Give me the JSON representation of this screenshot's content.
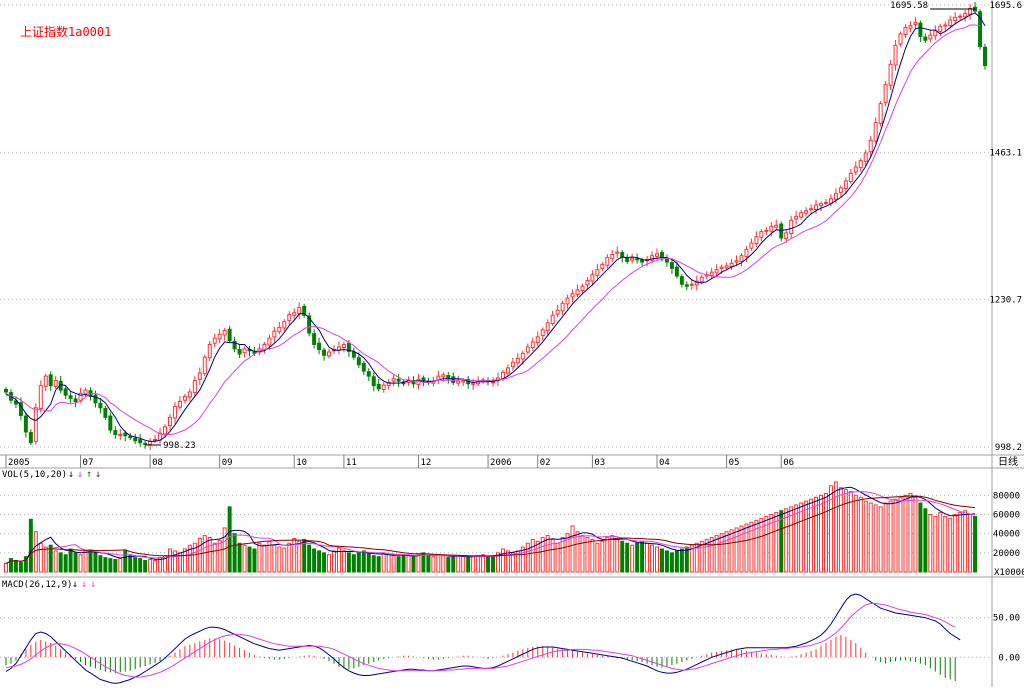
{
  "title": "上证指数1a0001",
  "colors": {
    "up": "#ff3232",
    "down": "#008000",
    "ma1": "#00008b",
    "ma2": "#e040e0",
    "ma3": "#8b0000",
    "grid": "#b0b0b0",
    "text": "#000000",
    "title": "#ff0000"
  },
  "chart_data": [
    {
      "type": "candlestick",
      "name": "price",
      "y_ticks": [
        "1695.6",
        "1463.1",
        "1230.7",
        "998.2"
      ],
      "ylim": [
        998.2,
        1695.6
      ],
      "annotations": {
        "high": "1695.58",
        "low": "998.23"
      },
      "x_labels": [
        "2005",
        "07",
        "08",
        "09",
        "10",
        "11",
        "12",
        "2006",
        "02",
        "03",
        "04",
        "05",
        "06"
      ],
      "corner_label": "日线",
      "series_shown": [
        "MA short",
        "MA long"
      ],
      "close": [
        1085,
        1072,
        1066,
        1048,
        1022,
        1005,
        1060,
        1095,
        1110,
        1095,
        1103,
        1088,
        1080,
        1075,
        1070,
        1083,
        1088,
        1078,
        1068,
        1060,
        1045,
        1025,
        1018,
        1018,
        1016,
        1013,
        1008,
        1005,
        1003,
        1007,
        1010,
        1020,
        1030,
        1045,
        1062,
        1070,
        1078,
        1085,
        1103,
        1115,
        1140,
        1160,
        1170,
        1176,
        1182,
        1166,
        1153,
        1145,
        1153,
        1150,
        1146,
        1153,
        1160,
        1170,
        1181,
        1187,
        1196,
        1207,
        1210,
        1218,
        1206,
        1178,
        1160,
        1152,
        1143,
        1148,
        1152,
        1156,
        1160,
        1149,
        1140,
        1128,
        1118,
        1110,
        1095,
        1090,
        1096,
        1100,
        1106,
        1102,
        1098,
        1104,
        1098,
        1105,
        1103,
        1100,
        1102,
        1110,
        1112,
        1107,
        1100,
        1102,
        1103,
        1098,
        1099,
        1101,
        1104,
        1102,
        1101,
        1107,
        1116,
        1123,
        1132,
        1138,
        1146,
        1156,
        1164,
        1172,
        1183,
        1194,
        1206,
        1214,
        1225,
        1233,
        1240,
        1246,
        1252,
        1261,
        1270,
        1278,
        1286,
        1297,
        1302,
        1306,
        1298,
        1291,
        1296,
        1294,
        1290,
        1294,
        1300,
        1303,
        1297,
        1290,
        1280,
        1268,
        1255,
        1252,
        1255,
        1260,
        1266,
        1270,
        1274,
        1278,
        1282,
        1284,
        1288,
        1292,
        1300,
        1310,
        1320,
        1330,
        1338,
        1340,
        1346,
        1348,
        1328,
        1336,
        1356,
        1362,
        1368,
        1371,
        1374,
        1380,
        1382,
        1384,
        1390,
        1398,
        1407,
        1418,
        1430,
        1440,
        1450,
        1462,
        1482,
        1510,
        1540,
        1570,
        1602,
        1632,
        1650,
        1660,
        1663,
        1668,
        1646,
        1640,
        1648,
        1655,
        1662,
        1664,
        1672,
        1676,
        1678,
        1682,
        1690,
        1686,
        1630,
        1600
      ],
      "ma_short": [
        1082,
        1078,
        1073,
        1063,
        1051,
        1043,
        1040,
        1046,
        1056,
        1066,
        1088,
        1097,
        1095,
        1086,
        1083,
        1080,
        1081,
        1079,
        1077,
        1074,
        1068,
        1056,
        1045,
        1031,
        1022,
        1016,
        1014,
        1012,
        1009,
        1007,
        1007,
        1009,
        1014,
        1023,
        1033,
        1045,
        1057,
        1068,
        1078,
        1088,
        1104,
        1121,
        1140,
        1154,
        1164,
        1163,
        1163,
        1160,
        1160,
        1152,
        1149,
        1149,
        1150,
        1155,
        1162,
        1169,
        1179,
        1190,
        1198,
        1208,
        1209,
        1202,
        1192,
        1183,
        1168,
        1156,
        1151,
        1151,
        1152,
        1151,
        1149,
        1145,
        1139,
        1130,
        1118,
        1108,
        1102,
        1099,
        1099,
        1099,
        1100,
        1103,
        1102,
        1103,
        1102,
        1102,
        1102,
        1104,
        1106,
        1106,
        1106,
        1106,
        1105,
        1102,
        1100,
        1101,
        1101,
        1101,
        1102,
        1103,
        1106,
        1110,
        1116,
        1123,
        1131,
        1139,
        1147,
        1155,
        1164,
        1174,
        1184,
        1194,
        1204,
        1214,
        1224,
        1232,
        1240,
        1247,
        1254,
        1262,
        1270,
        1278,
        1286,
        1294,
        1298,
        1297,
        1298,
        1297,
        1294,
        1293,
        1295,
        1296,
        1297,
        1297,
        1294,
        1288,
        1279,
        1269,
        1262,
        1258,
        1257,
        1259,
        1264,
        1268,
        1274,
        1278,
        1282,
        1285,
        1289,
        1295,
        1302,
        1310,
        1320,
        1328,
        1335,
        1341,
        1340,
        1341,
        1343,
        1346,
        1350,
        1359,
        1366,
        1371,
        1375,
        1378,
        1382,
        1387,
        1392,
        1399,
        1409,
        1419,
        1429,
        1441,
        1456,
        1474,
        1497,
        1522,
        1549,
        1577,
        1603,
        1627,
        1646,
        1658,
        1660,
        1658,
        1656,
        1656,
        1650,
        1654,
        1660,
        1666,
        1671,
        1675,
        1680,
        1683,
        1676,
        1663
      ],
      "ma_long": [
        1079,
        1079,
        1077,
        1072,
        1066,
        1060,
        1057,
        1057,
        1056,
        1055,
        1065,
        1069,
        1068,
        1066,
        1068,
        1070,
        1077,
        1082,
        1083,
        1080,
        1076,
        1068,
        1063,
        1056,
        1051,
        1046,
        1041,
        1036,
        1032,
        1028,
        1023,
        1019,
        1017,
        1018,
        1019,
        1022,
        1025,
        1030,
        1036,
        1044,
        1055,
        1067,
        1077,
        1089,
        1101,
        1109,
        1118,
        1126,
        1134,
        1139,
        1145,
        1150,
        1152,
        1153,
        1155,
        1158,
        1163,
        1169,
        1175,
        1179,
        1185,
        1188,
        1188,
        1187,
        1184,
        1180,
        1176,
        1173,
        1168,
        1163,
        1158,
        1151,
        1145,
        1140,
        1136,
        1131,
        1124,
        1118,
        1113,
        1108,
        1104,
        1104,
        1102,
        1102,
        1100,
        1100,
        1101,
        1104,
        1103,
        1104,
        1103,
        1104,
        1105,
        1104,
        1103,
        1103,
        1103,
        1103,
        1104,
        1104,
        1105,
        1107,
        1110,
        1113,
        1115,
        1119,
        1125,
        1132,
        1138,
        1145,
        1152,
        1159,
        1166,
        1174,
        1183,
        1191,
        1199,
        1208,
        1216,
        1224,
        1231,
        1240,
        1248,
        1254,
        1261,
        1267,
        1273,
        1278,
        1283,
        1287,
        1290,
        1293,
        1294,
        1296,
        1295,
        1292,
        1288,
        1284,
        1280,
        1275,
        1272,
        1270,
        1268,
        1267,
        1266,
        1266,
        1266,
        1269,
        1273,
        1278,
        1284,
        1290,
        1297,
        1303,
        1310,
        1315,
        1318,
        1322,
        1327,
        1331,
        1336,
        1340,
        1343,
        1346,
        1350,
        1355,
        1362,
        1370,
        1377,
        1385,
        1393,
        1403,
        1414,
        1428,
        1444,
        1461,
        1479,
        1499,
        1518,
        1538,
        1556,
        1573,
        1590,
        1602,
        1612,
        1620,
        1628,
        1636,
        1642,
        1648,
        1652,
        1656,
        1658,
        1660,
        1664,
        1664,
        1663
      ]
    },
    {
      "type": "bar",
      "name": "volume",
      "label": "VOL(5,10,20)",
      "arrows": [
        "↓",
        "↓",
        "↑",
        "↓"
      ],
      "y_ticks": [
        "80000",
        "60000",
        "40000",
        "20000"
      ],
      "unit": "X10000",
      "ylim": [
        0,
        95000
      ],
      "values": [
        9000,
        14000,
        12000,
        10000,
        16000,
        55000,
        42000,
        30000,
        26000,
        28000,
        22000,
        20000,
        18000,
        24000,
        20000,
        18000,
        22000,
        23000,
        20000,
        17000,
        15000,
        14000,
        13000,
        14000,
        22000,
        18000,
        15000,
        14000,
        12000,
        13000,
        12000,
        15000,
        17000,
        24000,
        22000,
        20000,
        24000,
        28000,
        30000,
        35000,
        38000,
        36000,
        30000,
        33000,
        46000,
        68000,
        40000,
        30000,
        28000,
        26000,
        24000,
        30000,
        28000,
        32000,
        28000,
        26000,
        25000,
        30000,
        35000,
        32000,
        34000,
        28000,
        24000,
        22000,
        20000,
        18000,
        22000,
        25000,
        22000,
        20000,
        18000,
        20000,
        22000,
        19000,
        17000,
        16000,
        20000,
        18000,
        17000,
        16000,
        18000,
        17000,
        16000,
        18000,
        20000,
        17000,
        16000,
        18000,
        17000,
        15000,
        16000,
        17000,
        16000,
        15000,
        16000,
        17000,
        18000,
        16000,
        17000,
        20000,
        24000,
        22000,
        20000,
        22000,
        26000,
        30000,
        34000,
        32000,
        36000,
        38000,
        34000,
        30000,
        36000,
        40000,
        48000,
        42000,
        38000,
        36000,
        34000,
        30000,
        32000,
        36000,
        38000,
        34000,
        32000,
        30000,
        28000,
        30000,
        32000,
        30000,
        28000,
        26000,
        24000,
        22000,
        20000,
        22000,
        24000,
        26000,
        28000,
        30000,
        32000,
        34000,
        36000,
        38000,
        40000,
        42000,
        44000,
        46000,
        48000,
        50000,
        52000,
        54000,
        56000,
        58000,
        60000,
        62000,
        64000,
        66000,
        68000,
        70000,
        72000,
        74000,
        76000,
        78000,
        80000,
        82000,
        90000,
        94000,
        88000,
        86000,
        84000,
        80000,
        78000,
        74000,
        72000,
        70000,
        68000,
        72000,
        74000,
        76000,
        78000,
        80000,
        82000,
        78000,
        72000,
        66000,
        60000,
        58000,
        62000,
        58000,
        56000,
        60000,
        62000,
        64000,
        60000,
        58000
      ]
    },
    {
      "type": "bar",
      "name": "macd",
      "label": "MACD(26,12,9)",
      "arrows": [
        "↓",
        "↓",
        "↓"
      ],
      "y_ticks": [
        "50.00",
        "0.00"
      ],
      "ylim": [
        -35,
        85
      ],
      "hist": [
        -10,
        -8,
        -4,
        4,
        10,
        16,
        20,
        22,
        20,
        18,
        14,
        10,
        6,
        2,
        -2,
        -6,
        -10,
        -12,
        -14,
        -16,
        -18,
        -19,
        -20,
        -19,
        -18,
        -17,
        -15,
        -13,
        -11,
        -9,
        -7,
        -5,
        -2,
        2,
        6,
        10,
        14,
        16,
        18,
        20,
        22,
        24,
        24,
        23,
        21,
        18,
        15,
        12,
        9,
        6,
        3,
        1,
        -1,
        -2,
        -3,
        -3,
        -2,
        -1,
        0,
        1,
        2,
        3,
        2,
        0,
        -2,
        -5,
        -8,
        -12,
        -14,
        -15,
        -14,
        -12,
        -10,
        -8,
        -6,
        -4,
        -2,
        -1,
        0,
        1,
        2,
        2,
        1,
        0,
        -1,
        -2,
        -3,
        -3,
        -2,
        -1,
        0,
        1,
        2,
        2,
        1,
        0,
        -1,
        -2,
        -1,
        0,
        2,
        4,
        6,
        8,
        10,
        12,
        13,
        14,
        14,
        13,
        12,
        11,
        10,
        9,
        8,
        7,
        6,
        5,
        4,
        3,
        2,
        1,
        0,
        -1,
        -2,
        -3,
        -4,
        -5,
        -6,
        -8,
        -10,
        -12,
        -13,
        -12,
        -10,
        -8,
        -6,
        -4,
        -2,
        0,
        2,
        4,
        6,
        7,
        8,
        9,
        10,
        10,
        9,
        8,
        7,
        6,
        5,
        4,
        3,
        2,
        1,
        0,
        1,
        2,
        4,
        6,
        8,
        10,
        14,
        18,
        22,
        26,
        28,
        26,
        22,
        18,
        12,
        6,
        0,
        -4,
        -6,
        -8,
        -6,
        -5,
        -4,
        -4,
        -5,
        -6,
        -8,
        -10,
        -14,
        -18,
        -22,
        -26,
        -28,
        -30
      ],
      "dif": [
        -18,
        -14,
        -8,
        2,
        12,
        22,
        30,
        32,
        30,
        26,
        20,
        14,
        8,
        2,
        -4,
        -10,
        -16,
        -20,
        -24,
        -28,
        -30,
        -32,
        -33,
        -32,
        -30,
        -28,
        -25,
        -22,
        -18,
        -14,
        -10,
        -6,
        -1,
        5,
        11,
        17,
        23,
        27,
        30,
        33,
        36,
        38,
        38,
        37,
        35,
        32,
        29,
        26,
        23,
        20,
        17,
        15,
        13,
        11,
        10,
        9,
        10,
        11,
        12,
        13,
        14,
        15,
        14,
        12,
        8,
        3,
        -2,
        -8,
        -13,
        -17,
        -20,
        -22,
        -23,
        -23,
        -22,
        -21,
        -20,
        -19,
        -18,
        -17,
        -16,
        -15,
        -15,
        -16,
        -16,
        -17,
        -17,
        -16,
        -15,
        -14,
        -13,
        -12,
        -11,
        -11,
        -12,
        -13,
        -14,
        -14,
        -13,
        -11,
        -8,
        -5,
        -2,
        1,
        4,
        7,
        10,
        12,
        13,
        13,
        13,
        12,
        11,
        10,
        9,
        8,
        7,
        6,
        5,
        4,
        3,
        2,
        1,
        0,
        -1,
        -3,
        -5,
        -7,
        -9,
        -11,
        -14,
        -17,
        -19,
        -20,
        -20,
        -19,
        -17,
        -15,
        -12,
        -9,
        -6,
        -3,
        0,
        2,
        4,
        6,
        8,
        10,
        11,
        12,
        12,
        12,
        12,
        12,
        12,
        12,
        12,
        12,
        13,
        14,
        16,
        18,
        21,
        24,
        28,
        34,
        42,
        52,
        62,
        72,
        78,
        80,
        78,
        74,
        70,
        66,
        62,
        60,
        58,
        56,
        55,
        54,
        53,
        52,
        51,
        50,
        48,
        46,
        42,
        36,
        30,
        26,
        22
      ],
      "dea": [
        -13,
        -12,
        -11,
        -9,
        -6,
        -2,
        3,
        8,
        12,
        15,
        17,
        17,
        16,
        14,
        11,
        8,
        4,
        0,
        -4,
        -8,
        -12,
        -15,
        -18,
        -21,
        -23,
        -24,
        -25,
        -25,
        -24,
        -23,
        -21,
        -19,
        -16,
        -13,
        -9,
        -5,
        -1,
        3,
        7,
        11,
        15,
        19,
        22,
        25,
        27,
        28,
        29,
        29,
        28,
        27,
        25,
        23,
        21,
        19,
        17,
        16,
        15,
        14,
        14,
        14,
        14,
        14,
        14,
        14,
        13,
        12,
        10,
        7,
        4,
        1,
        -2,
        -5,
        -8,
        -10,
        -12,
        -14,
        -15,
        -16,
        -17,
        -17,
        -17,
        -17,
        -17,
        -17,
        -17,
        -17,
        -17,
        -17,
        -17,
        -16,
        -16,
        -15,
        -15,
        -14,
        -14,
        -14,
        -14,
        -14,
        -14,
        -13,
        -12,
        -11,
        -9,
        -7,
        -5,
        -3,
        -1,
        1,
        3,
        5,
        7,
        8,
        9,
        9,
        10,
        10,
        10,
        10,
        9,
        9,
        8,
        7,
        6,
        5,
        4,
        3,
        2,
        0,
        -2,
        -4,
        -6,
        -8,
        -10,
        -12,
        -14,
        -15,
        -16,
        -16,
        -15,
        -14,
        -12,
        -10,
        -8,
        -6,
        -4,
        -2,
        0,
        2,
        4,
        5,
        6,
        7,
        8,
        9,
        10,
        10,
        11,
        11,
        12,
        12,
        13,
        14,
        15,
        17,
        19,
        22,
        26,
        31,
        37,
        44,
        51,
        57,
        62,
        66,
        68,
        68,
        67,
        66,
        64,
        62,
        60,
        59,
        57,
        56,
        55,
        54,
        52,
        50,
        48,
        45,
        41,
        38
      ]
    }
  ]
}
